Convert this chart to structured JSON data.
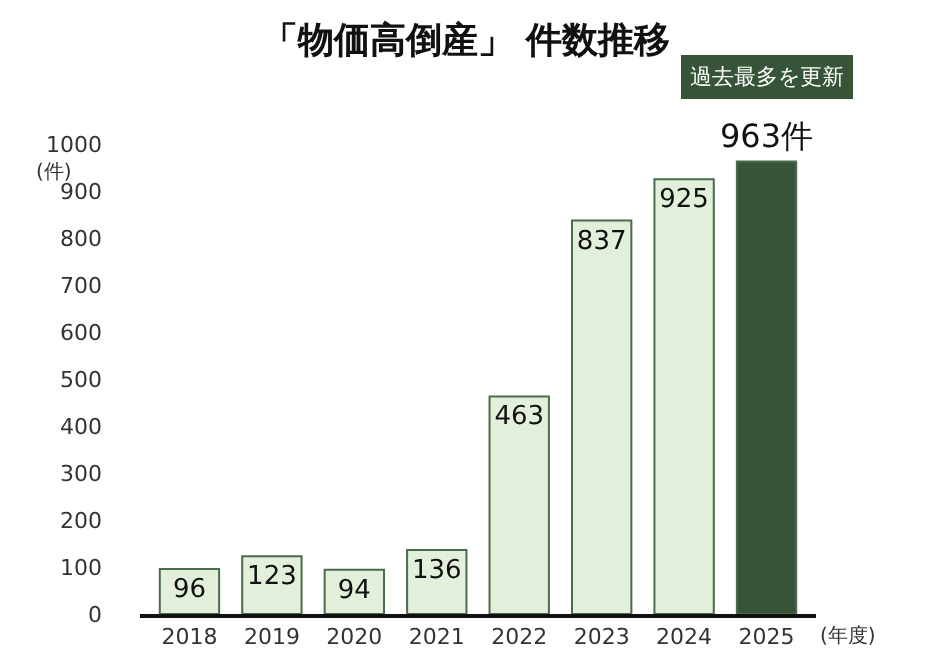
{
  "chart_data": {
    "type": "bar",
    "title": "「物価高倒産」 件数推移",
    "ylabel": "(件)",
    "xlabel": "(年度)",
    "categories": [
      "2018",
      "2019",
      "2020",
      "2021",
      "2022",
      "2023",
      "2024",
      "2025"
    ],
    "values": [
      96,
      123,
      94,
      136,
      463,
      837,
      925,
      963
    ],
    "colors": [
      "#e2efda",
      "#e2efda",
      "#e2efda",
      "#e2efda",
      "#e2efda",
      "#e2efda",
      "#e2efda",
      "#375438"
    ],
    "value_labels": [
      "96",
      "123",
      "94",
      "136",
      "463",
      "837",
      "925",
      "963件"
    ],
    "ylim": [
      0,
      1000
    ],
    "yticks": [
      0,
      100,
      200,
      300,
      400,
      500,
      600,
      700,
      800,
      900,
      1000
    ],
    "grid": false,
    "annotations": [
      "過去最多を更新"
    ]
  }
}
